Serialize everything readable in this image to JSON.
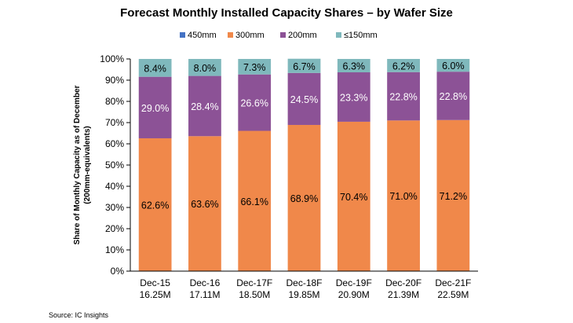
{
  "chart_data": {
    "type": "bar",
    "stacked": true,
    "title": "Forecast Monthly Installed Capacity Shares – by Wafer Size",
    "ylabel_line1": "Share of Monthly  Capacity as of December",
    "ylabel_line2": "(200mm-equivalents)",
    "xlabel": "",
    "ylim": [
      0,
      100
    ],
    "y_ticks": [
      0,
      10,
      20,
      30,
      40,
      50,
      60,
      70,
      80,
      90,
      100
    ],
    "y_tick_suffix": "%",
    "grid": false,
    "legend_position": "top",
    "categories": [
      [
        "Dec-15",
        "16.25M"
      ],
      [
        "Dec-16",
        "17.11M"
      ],
      [
        "Dec-17F",
        "18.50M"
      ],
      [
        "Dec-18F",
        "19.85M"
      ],
      [
        "Dec-19F",
        "20.90M"
      ],
      [
        "Dec-20F",
        "21.39M"
      ],
      [
        "Dec-21F",
        "22.59M"
      ]
    ],
    "series": [
      {
        "name": "450mm",
        "color": "#4472c4",
        "values": [
          0,
          0,
          0,
          0,
          0,
          0,
          0
        ],
        "labels": [
          "",
          "",
          "",
          "",
          "",
          "",
          ""
        ]
      },
      {
        "name": "300mm",
        "color": "#f0884a",
        "values": [
          62.6,
          63.6,
          66.1,
          68.9,
          70.4,
          71.0,
          71.2
        ],
        "labels": [
          "62.6%",
          "63.6%",
          "66.1%",
          "68.9%",
          "70.4%",
          "71.0%",
          "71.2%"
        ]
      },
      {
        "name": "200mm",
        "color": "#8c5296",
        "values": [
          29.0,
          28.4,
          26.6,
          24.5,
          23.3,
          22.8,
          22.8
        ],
        "labels": [
          "29.0%",
          "28.4%",
          "26.6%",
          "24.5%",
          "23.3%",
          "22.8%",
          "22.8%"
        ]
      },
      {
        "name": "≤150mm",
        "color": "#7fb8bc",
        "values": [
          8.4,
          8.0,
          7.3,
          6.7,
          6.3,
          6.2,
          6.0
        ],
        "labels": [
          "8.4%",
          "8.0%",
          "7.3%",
          "6.7%",
          "6.3%",
          "6.2%",
          "6.0%"
        ]
      }
    ]
  },
  "source_note": "Source:   IC Insights"
}
